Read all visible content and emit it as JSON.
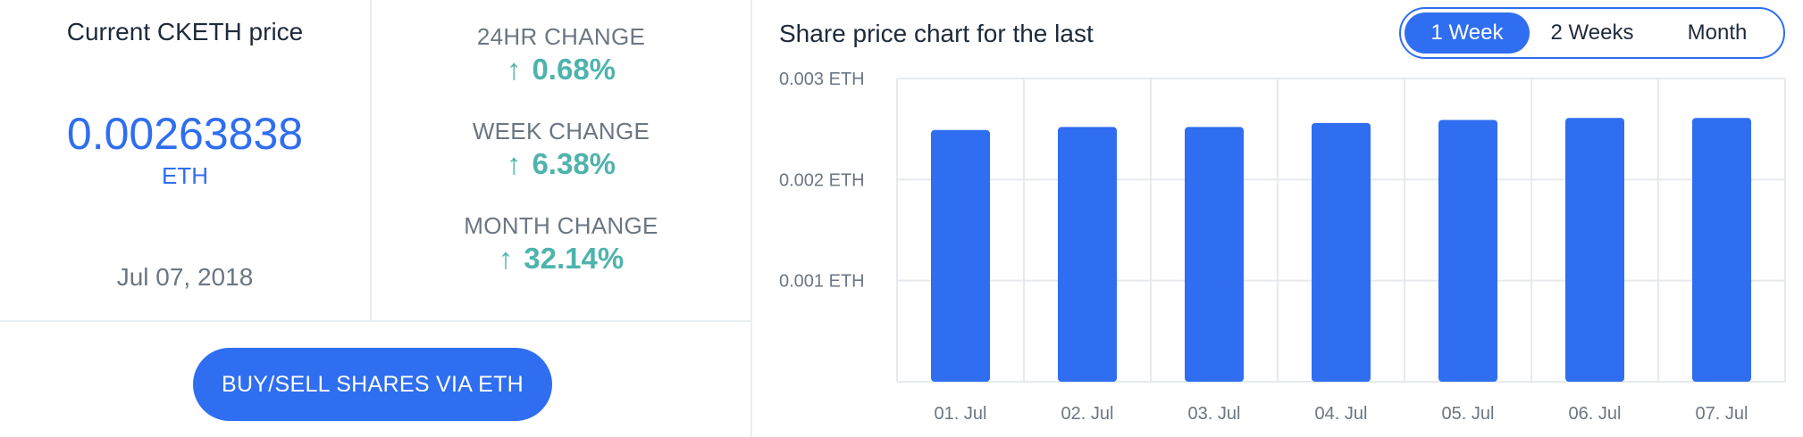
{
  "price": {
    "title": "Current CKETH price",
    "value": "0.00263838",
    "unit": "ETH",
    "date": "Jul 07, 2018"
  },
  "changes": [
    {
      "label": "24HR CHANGE",
      "value": "0.68%",
      "direction": "up"
    },
    {
      "label": "WEEK CHANGE",
      "value": "6.38%",
      "direction": "up"
    },
    {
      "label": "MONTH CHANGE",
      "value": "32.14%",
      "direction": "up"
    }
  ],
  "icons": {
    "change_arrow": "↑"
  },
  "buy_button": {
    "label": "BUY/SELL SHARES VIA ETH"
  },
  "chart_header": {
    "title": "Share price chart for the last",
    "periods": [
      "1 Week",
      "2 Weeks",
      "Month"
    ],
    "active_period": "1 Week"
  },
  "colors": {
    "accent": "#2f6ef0",
    "positive": "#4fb3ad",
    "grid": "#e6eaee"
  },
  "chart_data": {
    "type": "bar",
    "categories": [
      "01. Jul",
      "02. Jul",
      "03. Jul",
      "04. Jul",
      "05. Jul",
      "06. Jul",
      "07. Jul"
    ],
    "values": [
      0.00249,
      0.00252,
      0.00252,
      0.00256,
      0.00259,
      0.00261,
      0.00261
    ],
    "ylim": [
      0,
      0.003
    ],
    "yticks": [
      0.001,
      0.002,
      0.003
    ],
    "ytick_labels": [
      "0.001 ETH",
      "0.002 ETH",
      "0.003 ETH"
    ],
    "grid": true,
    "legend": "none"
  }
}
